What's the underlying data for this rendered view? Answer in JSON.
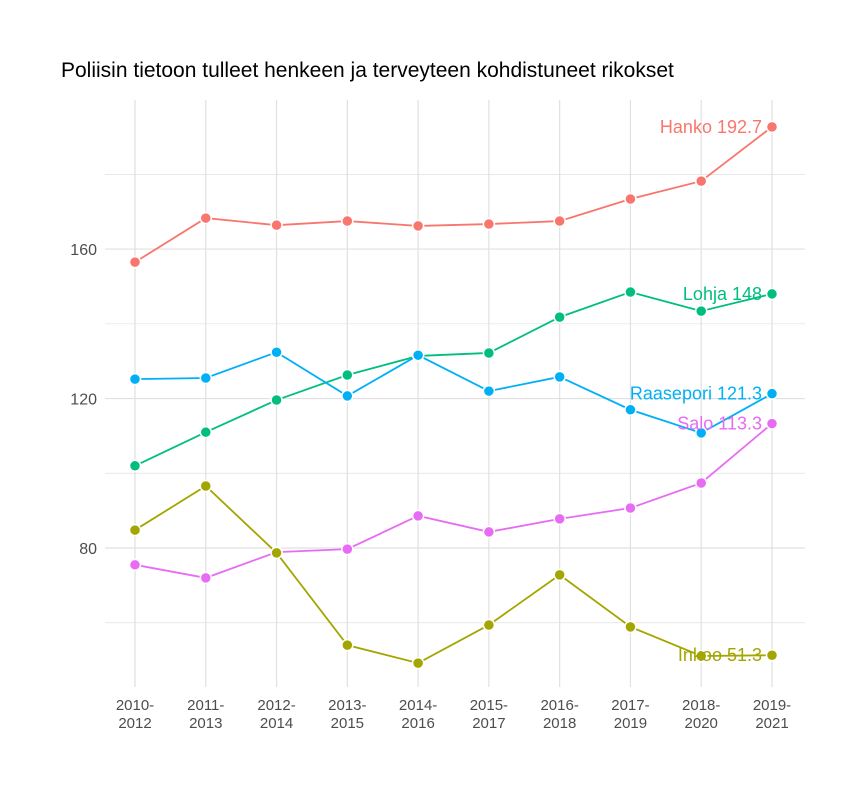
{
  "chart_data": {
    "type": "line",
    "title": "Poliisin tietoon tulleet henkeen ja terveyteen kohdistuneet rikokset",
    "xlabel": "",
    "ylabel": "",
    "categories": [
      "2010-2012",
      "2011-2013",
      "2012-2014",
      "2013-2015",
      "2014-2016",
      "2015-2017",
      "2016-2018",
      "2017-2019",
      "2018-2020",
      "2019-2021"
    ],
    "ylim": [
      42.8,
      199.9
    ],
    "yticks": [
      80,
      120,
      160
    ],
    "grid": true,
    "legend": "none (end labels)",
    "series": [
      {
        "name": "Hanko",
        "color": "#F8766D",
        "end_label": "Hanko 192.7",
        "values": [
          156.5,
          168.3,
          166.4,
          167.5,
          166.2,
          166.7,
          167.5,
          173.4,
          178.2,
          192.7
        ]
      },
      {
        "name": "Lohja",
        "color": "#00BF7D",
        "end_label": "Lohja 148",
        "values": [
          102,
          111,
          119.6,
          126.3,
          131.4,
          132.2,
          141.8,
          148.5,
          143.4,
          148
        ]
      },
      {
        "name": "Raasepori",
        "color": "#00B0F6",
        "end_label": "Raasepori 121.3",
        "values": [
          125.2,
          125.5,
          132.4,
          120.7,
          131.6,
          122,
          125.8,
          117,
          110.8,
          121.3
        ]
      },
      {
        "name": "Salo",
        "color": "#E76BF3",
        "end_label": "Salo 113.3",
        "values": [
          75.5,
          72,
          78.9,
          79.7,
          88.6,
          84.3,
          87.8,
          90.7,
          97.4,
          113.3
        ]
      },
      {
        "name": "Inkoo",
        "color": "#A3A500",
        "end_label": "Inkoo 51.3",
        "values": [
          84.8,
          96.6,
          78.7,
          54,
          49.2,
          59.4,
          72.8,
          58.9,
          51.1,
          51.3
        ]
      }
    ]
  }
}
